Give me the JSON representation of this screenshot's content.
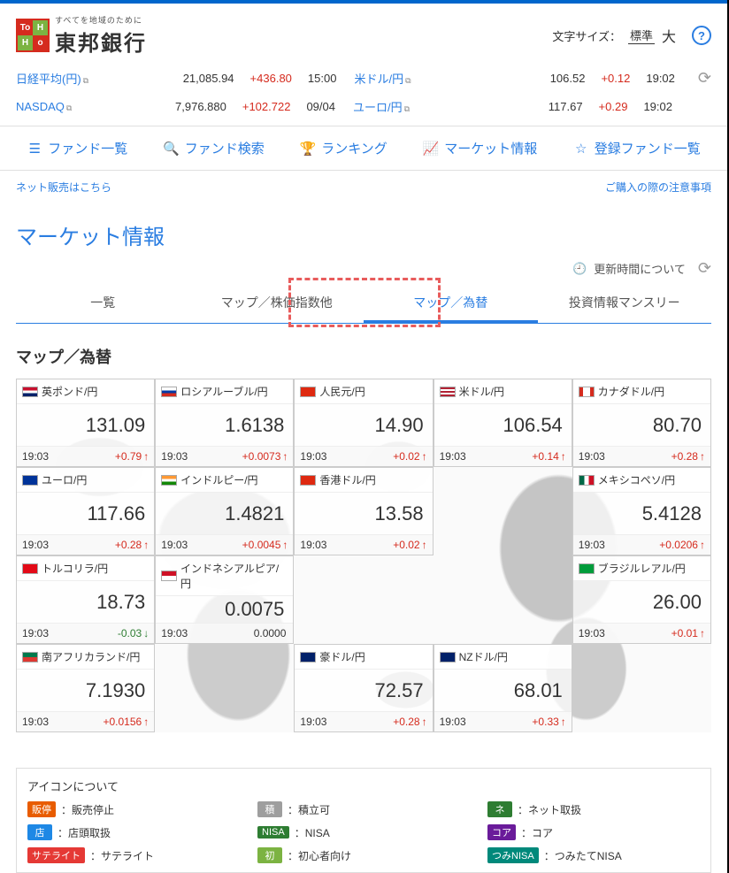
{
  "header": {
    "logo_sub": "すべてを地域のために",
    "logo_main": "東邦銀行",
    "font_label": "文字サイズ：",
    "font_std": "標準",
    "font_lg": "大"
  },
  "tickers": [
    {
      "name": "日経平均(円)",
      "value": "21,085.94",
      "change": "+436.80",
      "time": "15:00"
    },
    {
      "name": "米ドル/円",
      "value": "106.52",
      "change": "+0.12",
      "time": "19:02"
    },
    {
      "name": "NASDAQ",
      "value": "7,976.880",
      "change": "+102.722",
      "time": "09/04"
    },
    {
      "name": "ユーロ/円",
      "value": "117.67",
      "change": "+0.29",
      "time": "19:02"
    }
  ],
  "nav": {
    "fund_list": "ファンド一覧",
    "fund_search": "ファンド検索",
    "ranking": "ランキング",
    "market": "マーケット情報",
    "registered": "登録ファンド一覧"
  },
  "subbar": {
    "left": "ネット販売はこちら",
    "right": "ご購入の際の注意事項"
  },
  "page_title": "マーケット情報",
  "update_label": "更新時間について",
  "tabs": {
    "overview": "一覧",
    "index": "マップ／株価指数他",
    "fx": "マップ／為替",
    "monthly": "投資情報マンスリー"
  },
  "section_title": "マップ／為替",
  "cards": [
    [
      {
        "flag": "flag-gb",
        "name": "英ポンド/円",
        "value": "131.09",
        "time": "19:03",
        "change": "+0.79",
        "dir": "up"
      },
      {
        "flag": "flag-ru",
        "name": "ロシアルーブル/円",
        "value": "1.6138",
        "time": "19:03",
        "change": "+0.0073",
        "dir": "up"
      },
      {
        "flag": "flag-cn",
        "name": "人民元/円",
        "value": "14.90",
        "time": "19:03",
        "change": "+0.02",
        "dir": "up"
      },
      {
        "flag": "flag-us",
        "name": "米ドル/円",
        "value": "106.54",
        "time": "19:03",
        "change": "+0.14",
        "dir": "up"
      },
      {
        "flag": "flag-ca",
        "name": "カナダドル/円",
        "value": "80.70",
        "time": "19:03",
        "change": "+0.28",
        "dir": "up"
      }
    ],
    [
      {
        "flag": "flag-eu",
        "name": "ユーロ/円",
        "value": "117.66",
        "time": "19:03",
        "change": "+0.28",
        "dir": "up"
      },
      {
        "flag": "flag-in",
        "name": "インドルピー/円",
        "value": "1.4821",
        "time": "19:03",
        "change": "+0.0045",
        "dir": "up"
      },
      {
        "flag": "flag-hk",
        "name": "香港ドル/円",
        "value": "13.58",
        "time": "19:03",
        "change": "+0.02",
        "dir": "up"
      },
      null,
      {
        "flag": "flag-mx",
        "name": "メキシコペソ/円",
        "value": "5.4128",
        "time": "19:03",
        "change": "+0.0206",
        "dir": "up"
      }
    ],
    [
      {
        "flag": "flag-tr",
        "name": "トルコリラ/円",
        "value": "18.73",
        "time": "19:03",
        "change": "-0.03",
        "dir": "down"
      },
      {
        "flag": "flag-id",
        "name": "インドネシアルピア/円",
        "value": "0.0075",
        "time": "19:03",
        "change": "0.0000",
        "dir": "flat"
      },
      null,
      null,
      {
        "flag": "flag-br",
        "name": "ブラジルレアル/円",
        "value": "26.00",
        "time": "19:03",
        "change": "+0.01",
        "dir": "up"
      }
    ],
    [
      {
        "flag": "flag-za",
        "name": "南アフリカランド/円",
        "value": "7.1930",
        "time": "19:03",
        "change": "+0.0156",
        "dir": "up"
      },
      null,
      {
        "flag": "flag-au",
        "name": "豪ドル/円",
        "value": "72.57",
        "time": "19:03",
        "change": "+0.28",
        "dir": "up"
      },
      {
        "flag": "flag-nz",
        "name": "NZドル/円",
        "value": "68.01",
        "time": "19:03",
        "change": "+0.33",
        "dir": "up"
      },
      null
    ]
  ],
  "legend": {
    "title": "アイコンについて",
    "items": [
      {
        "badge": "販停",
        "color": "#e85c00",
        "text": "：販売停止"
      },
      {
        "badge": "積",
        "color": "#9e9e9e",
        "text": "：積立可"
      },
      {
        "badge": "ネ",
        "color": "#2e7d32",
        "text": "：ネット取扱"
      },
      {
        "badge": "店",
        "color": "#1e88e5",
        "text": "：店頭取扱"
      },
      {
        "badge": "NISA",
        "color": "#2e7d32",
        "text": "：NISA"
      },
      {
        "badge": "コア",
        "color": "#6a1b9a",
        "text": "：コア"
      },
      {
        "badge": "サテライト",
        "color": "#e53935",
        "text": "：サテライト"
      },
      {
        "badge": "初",
        "color": "#7cb342",
        "text": "：初心者向け"
      },
      {
        "badge": "つみNISA",
        "color": "#00897b",
        "text": "：つみたてNISA"
      }
    ]
  }
}
